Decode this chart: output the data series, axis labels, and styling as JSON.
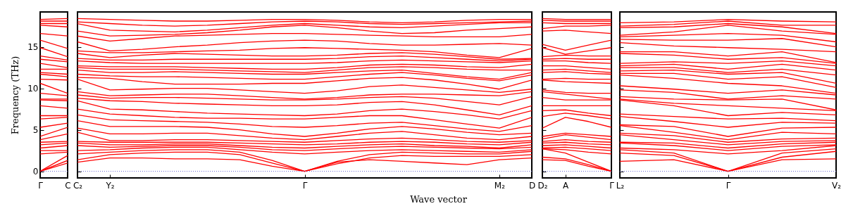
{
  "chart_data": [
    {
      "type": "line",
      "ylabel": "Frequency (THz)",
      "color": "#ff0000",
      "categories": [
        "Γ",
        "C"
      ],
      "ylim": [
        -0.8,
        19.2
      ],
      "yticks": [
        0,
        5,
        10,
        15
      ],
      "ref_lines": [
        {
          "axis": "y",
          "value": 0,
          "color": "#6b6bd6",
          "line_style": "dotted"
        }
      ],
      "series": [
        {
          "values": [
            0,
            1.0
          ]
        },
        {
          "values": [
            0,
            1.3
          ]
        },
        {
          "values": [
            0,
            1.9
          ]
        },
        {
          "values": [
            2.1,
            2.3
          ]
        },
        {
          "values": [
            2.5,
            2.5
          ]
        },
        {
          "values": [
            2.8,
            3.1
          ]
        },
        {
          "values": [
            3.2,
            3.4
          ]
        },
        {
          "values": [
            3.5,
            3.6
          ]
        },
        {
          "values": [
            3.8,
            4.5
          ]
        },
        {
          "values": [
            4.2,
            5.3
          ]
        },
        {
          "values": [
            5.3,
            5.8
          ]
        },
        {
          "values": [
            6.3,
            6.5
          ]
        },
        {
          "values": [
            6.7,
            6.7
          ]
        },
        {
          "values": [
            7.9,
            7.6
          ]
        },
        {
          "values": [
            8.6,
            8.5
          ]
        },
        {
          "values": [
            8.7,
            8.7
          ]
        },
        {
          "values": [
            9.4,
            9.1
          ]
        },
        {
          "values": [
            10.6,
            9.4
          ]
        },
        {
          "values": [
            11.1,
            11.0
          ]
        },
        {
          "values": [
            11.7,
            11.4
          ]
        },
        {
          "values": [
            11.9,
            11.7
          ]
        },
        {
          "values": [
            12.3,
            12.3
          ]
        },
        {
          "values": [
            13.0,
            12.5
          ]
        },
        {
          "values": [
            13.5,
            13.2
          ]
        },
        {
          "values": [
            13.9,
            13.4
          ]
        },
        {
          "values": [
            14.9,
            13.8
          ]
        },
        {
          "values": [
            15.8,
            14.8
          ]
        },
        {
          "values": [
            16.6,
            16.3
          ]
        },
        {
          "values": [
            17.6,
            17.4
          ]
        },
        {
          "values": [
            17.8,
            17.8
          ]
        },
        {
          "values": [
            18.1,
            18.1
          ]
        },
        {
          "values": [
            18.3,
            18.4
          ]
        }
      ]
    },
    {
      "type": "line",
      "xlabel": "Wave vector",
      "tick_labels": "x",
      "color": "#ff0000",
      "categories": [
        "C₂",
        "Y₂",
        null,
        null,
        null,
        null,
        null,
        "Γ",
        null,
        null,
        null,
        null,
        null,
        "M₂",
        "D"
      ],
      "ylim": [
        -0.8,
        19.2
      ],
      "yticks": [
        0,
        5,
        10,
        15
      ],
      "ref_lines": [
        {
          "axis": "y",
          "value": 0,
          "color": "#6b6bd6",
          "line_style": "dotted"
        }
      ],
      "series": [
        {
          "values": [
            1.1,
            1.6,
            1.6,
            1.5,
            1.5,
            1.4,
            0.6,
            0,
            1.1,
            1.4,
            1.2,
            1.0,
            0.8,
            1.4,
            1.6
          ]
        },
        {
          "values": [
            1.4,
            2.0,
            2.2,
            2.3,
            2.3,
            2.0,
            1.0,
            0,
            0.9,
            1.6,
            1.9,
            1.8,
            1.8,
            1.8,
            2.0
          ]
        },
        {
          "values": [
            2.1,
            2.3,
            2.5,
            2.6,
            2.6,
            2.3,
            1.3,
            0,
            1.2,
            2.0,
            2.3,
            2.2,
            2.1,
            2.1,
            2.4
          ]
        },
        {
          "values": [
            2.5,
            2.6,
            2.8,
            2.9,
            2.9,
            2.6,
            2.3,
            2.1,
            2.3,
            2.5,
            2.6,
            2.5,
            2.4,
            2.3,
            2.6
          ]
        },
        {
          "values": [
            3.1,
            2.9,
            3.0,
            3.1,
            3.1,
            2.9,
            2.6,
            2.5,
            2.7,
            2.9,
            3.0,
            2.9,
            2.8,
            2.7,
            2.9
          ]
        },
        {
          "values": [
            3.4,
            3.2,
            3.2,
            3.3,
            3.3,
            3.1,
            2.9,
            2.8,
            3.0,
            3.2,
            3.3,
            3.1,
            3.0,
            2.8,
            3.2
          ]
        },
        {
          "values": [
            3.6,
            3.5,
            3.5,
            3.5,
            3.5,
            3.4,
            3.3,
            3.2,
            3.3,
            3.5,
            3.6,
            3.5,
            3.3,
            3.2,
            3.5
          ]
        },
        {
          "values": [
            4.7,
            3.7,
            3.7,
            3.8,
            3.8,
            3.7,
            3.6,
            3.5,
            3.7,
            3.9,
            4.0,
            3.8,
            3.6,
            3.5,
            3.7
          ]
        },
        {
          "values": [
            5.2,
            4.5,
            4.5,
            4.6,
            4.6,
            4.3,
            4.0,
            3.8,
            4.2,
            4.6,
            4.8,
            4.4,
            4.0,
            3.8,
            4.2
          ]
        },
        {
          "values": [
            6.1,
            5.4,
            5.4,
            5.4,
            5.3,
            5.0,
            4.5,
            4.2,
            4.6,
            5.1,
            5.4,
            5.1,
            4.7,
            4.4,
            4.6
          ]
        },
        {
          "values": [
            6.8,
            6.2,
            6.1,
            6.0,
            5.9,
            5.7,
            5.4,
            5.3,
            5.5,
            5.8,
            5.9,
            5.5,
            5.1,
            4.8,
            5.5
          ]
        },
        {
          "values": [
            7.5,
            6.9,
            6.7,
            6.5,
            6.4,
            6.4,
            6.3,
            6.3,
            6.5,
            6.7,
            6.7,
            6.2,
            5.7,
            5.2,
            6.5
          ]
        },
        {
          "values": [
            8.5,
            7.5,
            7.4,
            7.2,
            7.0,
            6.9,
            6.8,
            6.7,
            6.9,
            7.3,
            7.5,
            7.2,
            6.8,
            6.3,
            7.3
          ]
        },
        {
          "values": [
            8.8,
            8.5,
            8.4,
            8.2,
            8.1,
            8.0,
            7.9,
            7.9,
            8.0,
            8.3,
            8.4,
            8.0,
            7.4,
            6.8,
            7.9
          ]
        },
        {
          "values": [
            9.2,
            8.8,
            8.9,
            8.9,
            8.8,
            8.7,
            8.6,
            8.6,
            8.7,
            8.9,
            9.0,
            8.8,
            8.4,
            8.0,
            9.0
          ]
        },
        {
          "values": [
            9.6,
            9.1,
            9.2,
            9.3,
            9.3,
            9.1,
            8.9,
            8.7,
            8.9,
            9.2,
            9.3,
            9.3,
            9.2,
            9.1,
            9.6
          ]
        },
        {
          "values": [
            11.1,
            9.8,
            9.9,
            10.0,
            10.0,
            9.8,
            9.6,
            9.4,
            9.7,
            10.2,
            10.4,
            10.1,
            9.8,
            9.5,
            9.9
          ]
        },
        {
          "values": [
            11.3,
            11.2,
            10.8,
            10.5,
            10.5,
            10.5,
            10.6,
            10.6,
            10.9,
            11.2,
            11.3,
            11.0,
            10.5,
            9.9,
            11.0
          ]
        },
        {
          "values": [
            11.7,
            11.5,
            11.4,
            11.4,
            11.3,
            11.2,
            11.1,
            11.1,
            11.4,
            11.7,
            11.9,
            11.6,
            11.2,
            10.9,
            11.6
          ]
        },
        {
          "values": [
            12.2,
            11.9,
            11.9,
            12.0,
            11.9,
            11.8,
            11.7,
            11.7,
            11.9,
            12.1,
            12.2,
            11.8,
            11.4,
            11.1,
            11.9
          ]
        },
        {
          "values": [
            12.5,
            12.3,
            12.3,
            12.3,
            12.2,
            12.1,
            12.0,
            11.9,
            12.2,
            12.5,
            12.6,
            12.5,
            12.3,
            12.2,
            12.2
          ]
        },
        {
          "values": [
            12.7,
            12.6,
            12.6,
            12.6,
            12.5,
            12.4,
            12.3,
            12.3,
            12.5,
            12.8,
            12.9,
            12.8,
            12.6,
            12.5,
            12.9
          ]
        },
        {
          "values": [
            13.3,
            13.1,
            13.0,
            13.0,
            13.0,
            13.0,
            13.0,
            13.0,
            13.1,
            13.3,
            13.4,
            13.3,
            13.2,
            13.1,
            13.3
          ]
        },
        {
          "values": [
            13.6,
            13.4,
            13.4,
            13.5,
            13.5,
            13.5,
            13.5,
            13.5,
            13.6,
            13.8,
            13.9,
            13.7,
            13.5,
            13.3,
            13.5
          ]
        },
        {
          "values": [
            14.2,
            13.7,
            14.0,
            14.2,
            14.1,
            14.0,
            13.9,
            13.9,
            14.0,
            14.2,
            14.3,
            14.1,
            13.8,
            13.5,
            13.6
          ]
        },
        {
          "values": [
            14.5,
            14.3,
            14.3,
            14.4,
            14.5,
            14.6,
            14.8,
            14.9,
            14.8,
            14.7,
            14.6,
            14.4,
            14.0,
            13.7,
            14.8
          ]
        },
        {
          "values": [
            15.6,
            14.5,
            14.7,
            15.0,
            15.2,
            15.5,
            15.7,
            15.8,
            15.7,
            15.4,
            15.2,
            15.2,
            15.3,
            15.4,
            15.2
          ]
        },
        {
          "values": [
            16.3,
            15.7,
            16.0,
            16.3,
            16.4,
            16.5,
            16.6,
            16.6,
            16.5,
            16.4,
            16.3,
            16.2,
            16.2,
            16.2,
            16.5
          ]
        },
        {
          "values": [
            16.9,
            16.3,
            16.4,
            16.5,
            16.7,
            17.0,
            17.4,
            17.6,
            17.3,
            16.9,
            16.6,
            16.7,
            17.0,
            17.2,
            17.4
          ]
        },
        {
          "values": [
            17.8,
            17.0,
            16.9,
            16.8,
            17.0,
            17.3,
            17.6,
            17.8,
            17.6,
            17.4,
            17.3,
            17.5,
            17.7,
            17.9,
            17.9
          ]
        },
        {
          "values": [
            18.0,
            17.8,
            17.6,
            17.5,
            17.6,
            17.8,
            18.0,
            18.1,
            18.0,
            17.8,
            17.7,
            17.8,
            17.9,
            18.0,
            18.1
          ]
        },
        {
          "values": [
            18.4,
            18.3,
            18.2,
            18.1,
            18.1,
            18.2,
            18.3,
            18.3,
            18.2,
            18.0,
            17.9,
            18.0,
            18.2,
            18.3,
            18.3
          ]
        }
      ]
    },
    {
      "type": "line",
      "tick_labels": "x",
      "color": "#ff0000",
      "categories": [
        "D₂",
        "A",
        null,
        "Γ"
      ],
      "ylim": [
        -0.8,
        19.2
      ],
      "yticks": [
        0,
        5,
        10,
        15
      ],
      "ref_lines": [
        {
          "axis": "y",
          "value": 0,
          "color": "#6b6bd6",
          "line_style": "dotted"
        }
      ],
      "series": [
        {
          "values": [
            1.4,
            1.3,
            0.6,
            0
          ]
        },
        {
          "values": [
            1.7,
            1.5,
            0.8,
            0
          ]
        },
        {
          "values": [
            2.7,
            2.2,
            1.1,
            0
          ]
        },
        {
          "values": [
            2.7,
            2.6,
            2.3,
            2.1
          ]
        },
        {
          "values": [
            2.8,
            2.9,
            2.7,
            2.5
          ]
        },
        {
          "values": [
            3.1,
            3.2,
            3.0,
            2.8
          ]
        },
        {
          "values": [
            3.4,
            3.5,
            3.3,
            3.2
          ]
        },
        {
          "values": [
            3.6,
            3.8,
            3.6,
            3.5
          ]
        },
        {
          "values": [
            3.9,
            4.4,
            4.1,
            3.8
          ]
        },
        {
          "values": [
            4.2,
            4.6,
            4.4,
            4.2
          ]
        },
        {
          "values": [
            5.2,
            6.5,
            6.0,
            5.3
          ]
        },
        {
          "values": [
            6.6,
            7.0,
            6.7,
            6.3
          ]
        },
        {
          "values": [
            7.3,
            7.4,
            7.0,
            6.7
          ]
        },
        {
          "values": [
            7.9,
            7.9,
            7.9,
            7.9
          ]
        },
        {
          "values": [
            8.9,
            8.6,
            8.6,
            8.6
          ]
        },
        {
          "values": [
            9.6,
            9.3,
            9.0,
            8.7
          ]
        },
        {
          "values": [
            9.8,
            9.5,
            9.4,
            9.4
          ]
        },
        {
          "values": [
            11.0,
            10.8,
            10.7,
            10.6
          ]
        },
        {
          "values": [
            11.1,
            11.2,
            11.1,
            11.1
          ]
        },
        {
          "values": [
            11.9,
            12.0,
            11.8,
            11.7
          ]
        },
        {
          "values": [
            12.2,
            12.3,
            12.1,
            11.9
          ]
        },
        {
          "values": [
            12.7,
            12.7,
            12.5,
            12.3
          ]
        },
        {
          "values": [
            13.3,
            13.3,
            13.1,
            13.0
          ]
        },
        {
          "values": [
            13.5,
            13.6,
            13.5,
            13.5
          ]
        },
        {
          "values": [
            13.8,
            14.0,
            13.9,
            13.9
          ]
        },
        {
          "values": [
            14.9,
            14.1,
            14.5,
            14.9
          ]
        },
        {
          "values": [
            15.3,
            14.6,
            15.2,
            15.8
          ]
        },
        {
          "values": [
            16.9,
            17.0,
            16.8,
            16.6
          ]
        },
        {
          "values": [
            17.2,
            17.5,
            17.5,
            17.6
          ]
        },
        {
          "values": [
            17.9,
            17.8,
            17.8,
            17.8
          ]
        },
        {
          "values": [
            18.2,
            18.1,
            18.1,
            18.1
          ]
        },
        {
          "values": [
            18.4,
            18.3,
            18.3,
            18.3
          ]
        }
      ]
    },
    {
      "type": "line",
      "tick_labels": "x",
      "color": "#ff0000",
      "categories": [
        "L₂",
        null,
        "Γ",
        null,
        "V₂"
      ],
      "ylim": [
        -0.8,
        19.2
      ],
      "yticks": [
        0,
        5,
        10,
        15
      ],
      "ref_lines": [
        {
          "axis": "y",
          "value": 0,
          "color": "#6b6bd6",
          "line_style": "dotted"
        }
      ],
      "series": [
        {
          "values": [
            1.2,
            1.4,
            0,
            1.4,
            1.5
          ]
        },
        {
          "values": [
            2.2,
            1.9,
            0,
            1.7,
            2.4
          ]
        },
        {
          "values": [
            2.6,
            2.2,
            0,
            2.2,
            2.7
          ]
        },
        {
          "values": [
            2.8,
            2.6,
            2.1,
            2.5,
            3.1
          ]
        },
        {
          "values": [
            3.4,
            3.1,
            2.5,
            3.0,
            3.2
          ]
        },
        {
          "values": [
            3.5,
            3.4,
            2.8,
            3.3,
            3.5
          ]
        },
        {
          "values": [
            4.4,
            3.8,
            3.2,
            3.6,
            3.7
          ]
        },
        {
          "values": [
            4.6,
            4.3,
            3.5,
            3.9,
            4.0
          ]
        },
        {
          "values": [
            5.5,
            4.7,
            3.8,
            4.7,
            4.5
          ]
        },
        {
          "values": [
            5.6,
            5.4,
            4.2,
            5.2,
            5.3
          ]
        },
        {
          "values": [
            6.6,
            6.0,
            5.3,
            5.9,
            5.8
          ]
        },
        {
          "values": [
            6.9,
            6.6,
            6.3,
            6.4,
            6.1
          ]
        },
        {
          "values": [
            8.6,
            7.9,
            6.7,
            7.1,
            6.8
          ]
        },
        {
          "values": [
            8.7,
            8.2,
            7.9,
            7.6,
            7.3
          ]
        },
        {
          "values": [
            9.0,
            8.7,
            8.6,
            8.7,
            7.4
          ]
        },
        {
          "values": [
            9.8,
            9.5,
            8.7,
            9.1,
            8.7
          ]
        },
        {
          "values": [
            10.3,
            9.9,
            9.4,
            9.8,
            9.2
          ]
        },
        {
          "values": [
            11.6,
            11.2,
            10.6,
            10.3,
            9.4
          ]
        },
        {
          "values": [
            11.8,
            11.8,
            11.1,
            11.4,
            10.1
          ]
        },
        {
          "values": [
            12.1,
            12.2,
            11.7,
            11.9,
            10.6
          ]
        },
        {
          "values": [
            12.5,
            12.5,
            11.9,
            12.3,
            11.6
          ]
        },
        {
          "values": [
            12.7,
            12.9,
            12.3,
            12.9,
            12.2
          ]
        },
        {
          "values": [
            13.0,
            13.2,
            13.0,
            13.3,
            12.7
          ]
        },
        {
          "values": [
            14.2,
            14.0,
            13.5,
            13.7,
            13.0
          ]
        },
        {
          "values": [
            14.4,
            14.4,
            13.9,
            14.4,
            13.1
          ]
        },
        {
          "values": [
            15.5,
            15.1,
            14.9,
            14.7,
            14.4
          ]
        },
        {
          "values": [
            15.9,
            15.8,
            15.8,
            16.0,
            15.0
          ]
        },
        {
          "values": [
            16.2,
            16.4,
            16.6,
            16.4,
            15.6
          ]
        },
        {
          "values": [
            16.4,
            16.8,
            17.6,
            16.9,
            16.5
          ]
        },
        {
          "values": [
            17.3,
            17.4,
            17.8,
            17.4,
            16.6
          ]
        },
        {
          "values": [
            17.5,
            17.7,
            18.1,
            17.6,
            17.6
          ]
        },
        {
          "values": [
            17.9,
            18.0,
            18.3,
            18.1,
            18.0
          ]
        }
      ]
    }
  ]
}
